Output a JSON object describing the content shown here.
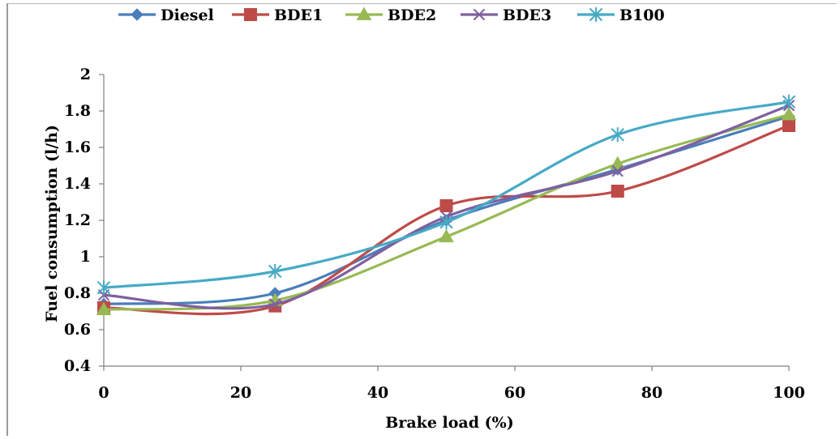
{
  "chart_data": {
    "type": "line",
    "smooth": true,
    "xlabel": "Brake load (%)",
    "ylabel": "Fuel consumption (l/h)",
    "xlim": [
      0,
      100
    ],
    "ylim": [
      0.4,
      2
    ],
    "x_ticks": [
      "0",
      "20",
      "40",
      "60",
      "80",
      "100"
    ],
    "y_ticks": [
      "0.4",
      "0.6",
      "0.8",
      "1",
      "1.2",
      "1.4",
      "1.6",
      "1.8",
      "2"
    ],
    "grid": false,
    "legend_position": "top",
    "x": [
      0,
      25,
      50,
      75,
      100
    ],
    "series": [
      {
        "name": "Diesel",
        "color": "#4a7ebb",
        "marker": "diamond",
        "values": [
          0.74,
          0.8,
          1.2,
          1.48,
          1.77
        ]
      },
      {
        "name": "BDE1",
        "color": "#be4b48",
        "marker": "square",
        "values": [
          0.72,
          0.73,
          1.28,
          1.36,
          1.72
        ]
      },
      {
        "name": "BDE2",
        "color": "#98b954",
        "marker": "triangle",
        "values": [
          0.71,
          0.76,
          1.11,
          1.51,
          1.78
        ]
      },
      {
        "name": "BDE3",
        "color": "#7d60a0",
        "marker": "x",
        "values": [
          0.79,
          0.74,
          1.22,
          1.47,
          1.83
        ]
      },
      {
        "name": "B100",
        "color": "#46aac5",
        "marker": "star",
        "values": [
          0.83,
          0.92,
          1.19,
          1.67,
          1.85
        ]
      }
    ]
  }
}
